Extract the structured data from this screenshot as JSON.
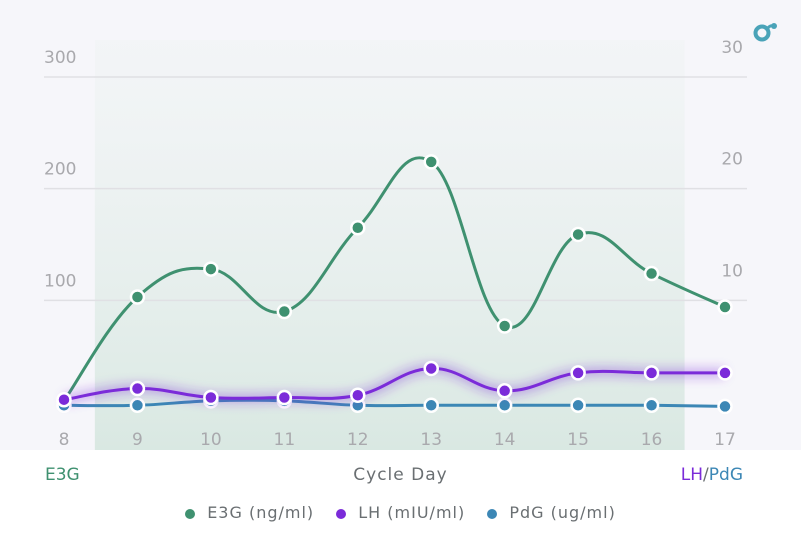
{
  "chart_data": {
    "type": "line",
    "xlabel": "Cycle Day",
    "ylabel_left": "E3G",
    "ylabel_right_parts": [
      "LH",
      "/",
      "PdG"
    ],
    "x": [
      8,
      9,
      10,
      11,
      12,
      13,
      14,
      15,
      16,
      17
    ],
    "left_ylim": [
      0,
      300
    ],
    "right_ylim": [
      0,
      30
    ],
    "left_ticks": [
      100,
      200,
      300
    ],
    "right_ticks": [
      10,
      20,
      30
    ],
    "grid": true,
    "highlight_range": [
      8.42,
      16.45
    ],
    "legend_position": "bottom",
    "series": [
      {
        "name": "E3G (ng/ml)",
        "axis": "left",
        "color": "#3f9170",
        "values": [
          10,
          103,
          128,
          90,
          165,
          224,
          77,
          159,
          124,
          94
        ]
      },
      {
        "name": "LH (mIU/ml)",
        "axis": "right",
        "color": "#7b2bd9",
        "values": [
          1.1,
          2.1,
          1.3,
          1.3,
          1.5,
          3.9,
          1.9,
          3.5,
          3.5,
          3.5
        ]
      },
      {
        "name": "PdG (ug/ml)",
        "axis": "right",
        "color": "#3c87b5",
        "values": [
          0.6,
          0.6,
          1.0,
          1.0,
          0.6,
          0.6,
          0.6,
          0.6,
          0.6,
          0.5
        ]
      }
    ]
  },
  "colors": {
    "ylabel_right_slash": "#6a6f72",
    "logo": "#4aa3b8"
  },
  "logo_icon": "brand-logo-icon"
}
